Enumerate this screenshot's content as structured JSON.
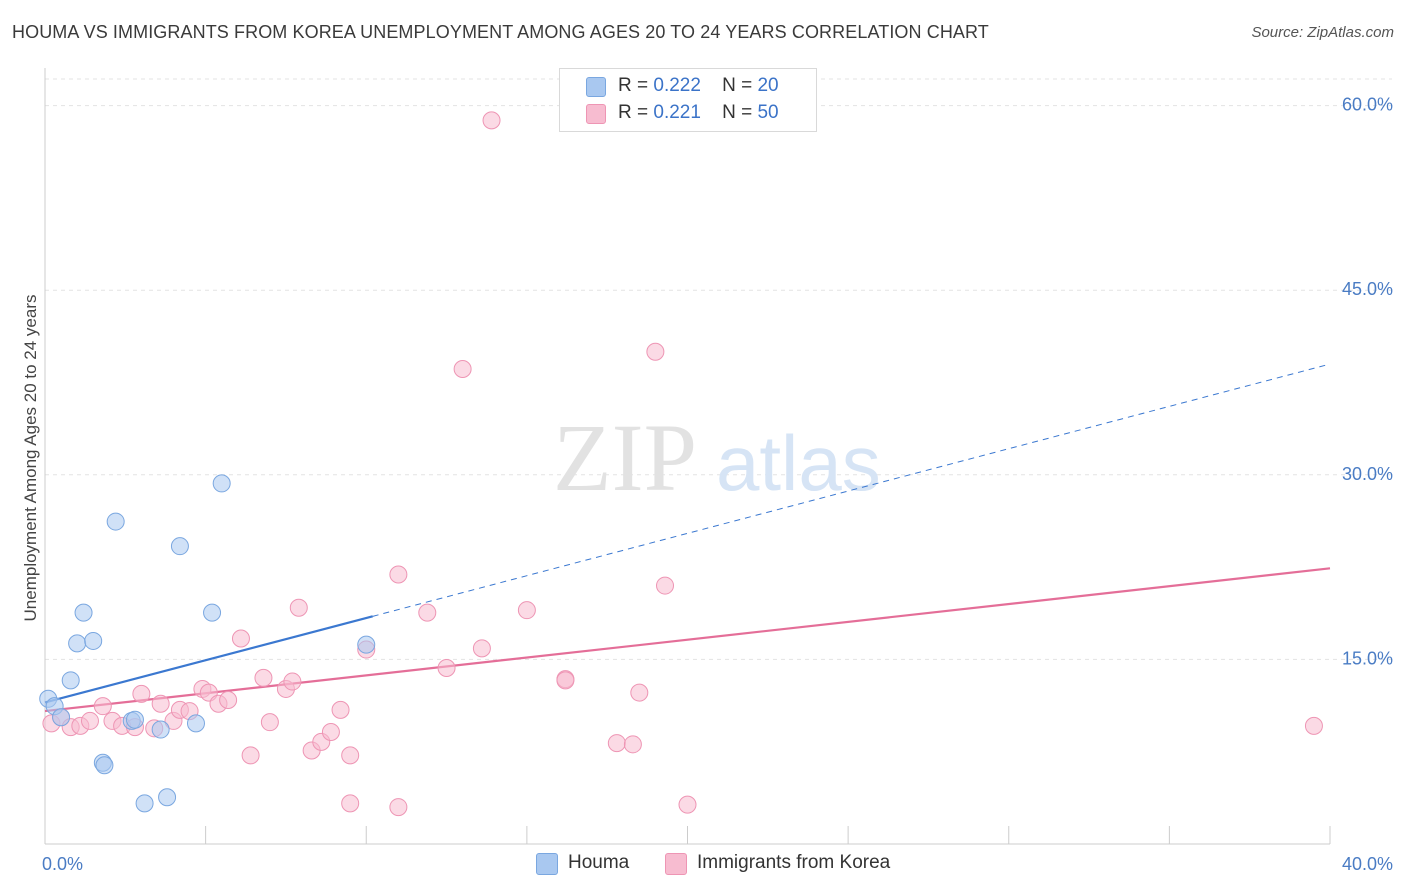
{
  "title": "HOUMA VS IMMIGRANTS FROM KOREA UNEMPLOYMENT AMONG AGES 20 TO 24 YEARS CORRELATION CHART",
  "source": "Source: ZipAtlas.com",
  "watermark": {
    "zip": "ZIP",
    "atlas": "atlas"
  },
  "legend": {
    "rows": [
      {
        "r_label": "R =",
        "r_value": "0.222",
        "n_label": "N =",
        "n_value": "20",
        "color": "#a9c8f0",
        "border": "#7aa7e0"
      },
      {
        "r_label": "R =",
        "r_value": "0.221",
        "n_label": "N =",
        "n_value": "50",
        "color": "#f7bcd0",
        "border": "#ee95b4"
      }
    ]
  },
  "bottom_legend": [
    {
      "label": "Houma",
      "color": "#a9c8f0",
      "border": "#7aa7e0"
    },
    {
      "label": "Immigrants from Korea",
      "color": "#f7bcd0",
      "border": "#ee95b4"
    }
  ],
  "chart_data": {
    "type": "scatter",
    "xlabel": "",
    "ylabel": "Unemployment Among Ages 20 to 24 years",
    "xlim": [
      0,
      40
    ],
    "ylim": [
      0,
      62
    ],
    "x_tick_labels": [
      {
        "value": 0,
        "label": "0.0%"
      },
      {
        "value": 40,
        "label": "40.0%"
      }
    ],
    "y_tick_labels": [
      {
        "value": 15,
        "label": "15.0%"
      },
      {
        "value": 30,
        "label": "30.0%"
      },
      {
        "value": 45,
        "label": "45.0%"
      },
      {
        "value": 60,
        "label": "60.0%"
      }
    ],
    "grid": true,
    "legend_position": "top-center",
    "series": [
      {
        "name": "Houma",
        "color": "#a9c8f0",
        "stroke": "#7aa7e0",
        "trend_color": "#3b78d0",
        "points": [
          [
            0.1,
            11.8
          ],
          [
            0.3,
            11.2
          ],
          [
            0.5,
            10.3
          ],
          [
            0.8,
            13.3
          ],
          [
            1.0,
            16.3
          ],
          [
            1.2,
            18.8
          ],
          [
            1.5,
            16.5
          ],
          [
            1.8,
            6.6
          ],
          [
            1.85,
            6.4
          ],
          [
            2.2,
            26.2
          ],
          [
            2.7,
            10.0
          ],
          [
            3.1,
            3.3
          ],
          [
            3.6,
            9.3
          ],
          [
            3.8,
            3.8
          ],
          [
            4.2,
            24.2
          ],
          [
            4.7,
            9.8
          ],
          [
            5.2,
            18.8
          ],
          [
            5.5,
            29.3
          ],
          [
            10.0,
            16.2
          ],
          [
            2.8,
            10.1
          ]
        ],
        "trend": {
          "x0": 0,
          "y0": 11.5,
          "x1": 10.2,
          "y1": 18.5,
          "dash_x1": 40,
          "dash_y1": 39.0
        }
      },
      {
        "name": "Immigrants from Korea",
        "color": "#f7bcd0",
        "stroke": "#ee95b4",
        "trend_color": "#e46e98",
        "points": [
          [
            0.2,
            9.8
          ],
          [
            0.5,
            10.3
          ],
          [
            0.8,
            9.5
          ],
          [
            1.1,
            9.6
          ],
          [
            1.4,
            10.0
          ],
          [
            1.8,
            11.2
          ],
          [
            2.1,
            10.0
          ],
          [
            2.4,
            9.6
          ],
          [
            2.8,
            9.5
          ],
          [
            3.0,
            12.2
          ],
          [
            3.4,
            9.4
          ],
          [
            3.6,
            11.4
          ],
          [
            4.0,
            10.0
          ],
          [
            4.2,
            10.9
          ],
          [
            4.5,
            10.8
          ],
          [
            4.9,
            12.6
          ],
          [
            5.1,
            12.3
          ],
          [
            5.4,
            11.4
          ],
          [
            5.7,
            11.7
          ],
          [
            6.1,
            16.7
          ],
          [
            6.4,
            7.2
          ],
          [
            6.8,
            13.5
          ],
          [
            7.0,
            9.9
          ],
          [
            7.5,
            12.6
          ],
          [
            7.7,
            13.2
          ],
          [
            7.9,
            19.2
          ],
          [
            8.3,
            7.6
          ],
          [
            8.6,
            8.3
          ],
          [
            8.9,
            9.1
          ],
          [
            9.2,
            10.9
          ],
          [
            9.5,
            7.2
          ],
          [
            9.5,
            3.3
          ],
          [
            10.0,
            15.8
          ],
          [
            11.0,
            21.9
          ],
          [
            11.0,
            3.0
          ],
          [
            11.9,
            18.8
          ],
          [
            12.5,
            14.3
          ],
          [
            13.0,
            38.6
          ],
          [
            13.6,
            15.9
          ],
          [
            13.9,
            58.8
          ],
          [
            15.0,
            19.0
          ],
          [
            16.2,
            13.4
          ],
          [
            16.2,
            13.3
          ],
          [
            17.8,
            8.2
          ],
          [
            18.3,
            8.1
          ],
          [
            18.5,
            12.3
          ],
          [
            19.0,
            40.0
          ],
          [
            19.3,
            21.0
          ],
          [
            20.0,
            3.2
          ],
          [
            39.5,
            9.6
          ]
        ],
        "trend": {
          "x0": 0,
          "y0": 10.8,
          "x1": 40,
          "y1": 22.4
        }
      }
    ]
  }
}
